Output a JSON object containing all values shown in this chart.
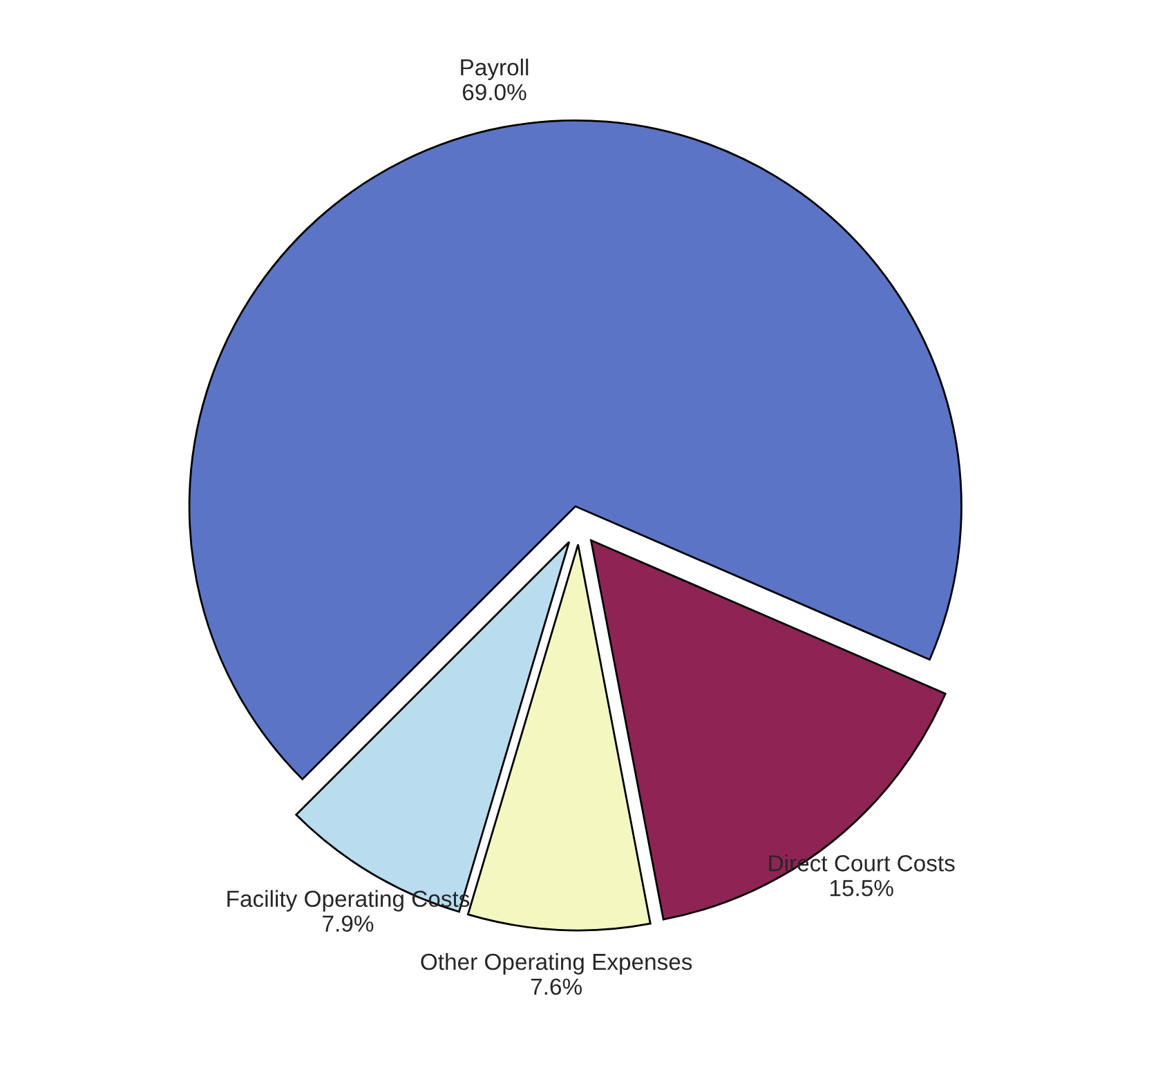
{
  "chart_data": {
    "type": "pie",
    "categories": [
      "Payroll",
      "Direct Court Costs",
      "Other Operating Expenses",
      "Facility Operating Costs"
    ],
    "values": [
      69.0,
      15.5,
      7.6,
      7.9
    ],
    "value_labels": [
      "69.0%",
      "15.5%",
      "7.6%",
      "7.9%"
    ],
    "colors": [
      "#5b74c6",
      "#8e2454",
      "#f4f7c0",
      "#b9dcef"
    ]
  }
}
